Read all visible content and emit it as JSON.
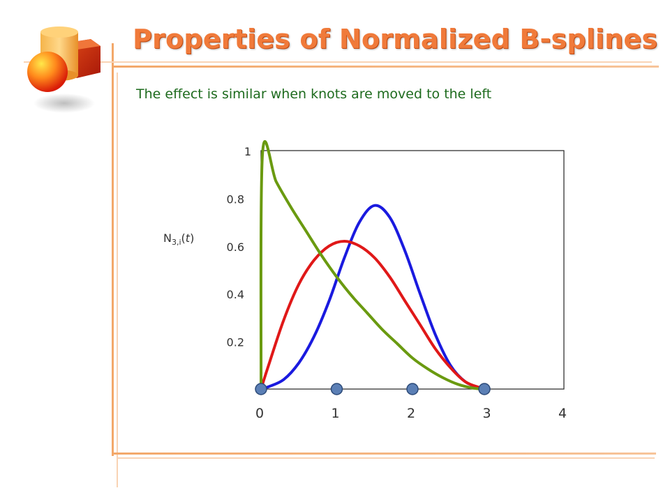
{
  "slide": {
    "title": "Properties of Normalized B-splines",
    "subtitle": "The effect is similar when knots are moved to the left"
  },
  "chart_data": {
    "type": "line",
    "ylabel": "N3,i(t)",
    "ylabel_parts": {
      "base": "N",
      "sub": "3,i",
      "open": "(",
      "var": "t",
      "close": ")"
    },
    "xlim": [
      0,
      4
    ],
    "ylim": [
      0,
      1
    ],
    "xticks": [
      "0",
      "1",
      "2",
      "3",
      "4"
    ],
    "yticks": [
      "0.2",
      "0.4",
      "0.6",
      "0.8",
      "1"
    ],
    "knots": [
      0,
      1,
      2,
      2.95
    ],
    "series": [
      {
        "color": "#1a1adf",
        "x": [
          0,
          0.1,
          0.3,
          0.5,
          0.7,
          0.9,
          1.1,
          1.3,
          1.5,
          1.7,
          1.9,
          2.1,
          2.3,
          2.5,
          2.7,
          2.9,
          2.95
        ],
        "y": [
          0.0,
          0.01,
          0.04,
          0.11,
          0.22,
          0.37,
          0.55,
          0.7,
          0.77,
          0.72,
          0.58,
          0.4,
          0.23,
          0.1,
          0.03,
          0.005,
          0.0
        ]
      },
      {
        "color": "#e01818",
        "x": [
          0,
          0.1,
          0.3,
          0.5,
          0.7,
          0.9,
          1.1,
          1.3,
          1.5,
          1.7,
          1.9,
          2.1,
          2.3,
          2.5,
          2.7,
          2.9,
          2.95
        ],
        "y": [
          0.0,
          0.1,
          0.29,
          0.44,
          0.54,
          0.6,
          0.62,
          0.6,
          0.55,
          0.47,
          0.37,
          0.27,
          0.17,
          0.09,
          0.03,
          0.005,
          0.0
        ]
      },
      {
        "color": "#6a9a10",
        "x": [
          0,
          0.02,
          0.2,
          0.4,
          0.6,
          0.8,
          1.0,
          1.2,
          1.4,
          1.6,
          1.8,
          2.0,
          2.2,
          2.4,
          2.6,
          2.8,
          2.95
        ],
        "y": [
          0.0,
          0.99,
          0.87,
          0.76,
          0.66,
          0.56,
          0.47,
          0.39,
          0.32,
          0.25,
          0.19,
          0.13,
          0.085,
          0.048,
          0.02,
          0.004,
          0.0
        ]
      }
    ],
    "colors": {
      "axis_frame": "#222222",
      "knot_fill": "#5b7fb5",
      "knot_stroke": "#2c4a78"
    }
  }
}
